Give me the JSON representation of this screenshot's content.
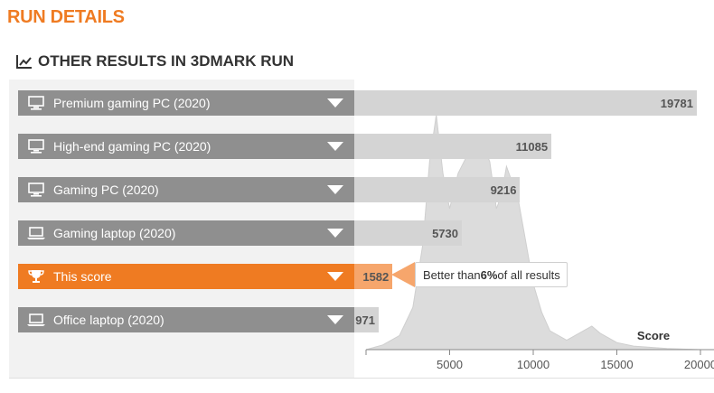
{
  "header": {
    "title": "RUN DETAILS"
  },
  "section": {
    "title": "OTHER RESULTS IN 3DMARK RUN"
  },
  "rows": [
    {
      "label": "Premium gaming PC (2020)",
      "score": "19781",
      "value": 19781,
      "icon": "desktop-icon",
      "highlight": false
    },
    {
      "label": "High-end gaming PC (2020)",
      "score": "11085",
      "value": 11085,
      "icon": "desktop-icon",
      "highlight": false
    },
    {
      "label": "Gaming PC (2020)",
      "score": "9216",
      "value": 9216,
      "icon": "desktop-icon",
      "highlight": false
    },
    {
      "label": "Gaming laptop (2020)",
      "score": "5730",
      "value": 5730,
      "icon": "laptop-icon",
      "highlight": false
    },
    {
      "label": "This score",
      "score": "1582",
      "value": 1582,
      "icon": "trophy-icon",
      "highlight": true
    },
    {
      "label": "Office laptop (2020)",
      "score": "971",
      "value": 971,
      "icon": "laptop-icon",
      "highlight": false
    }
  ],
  "tooltip": {
    "prefix": "Better than ",
    "percent": "6%",
    "suffix": " of all results"
  },
  "colors": {
    "accent": "#ef7b22",
    "accent_light": "#f6a66c",
    "row_gray": "#8f8f8f",
    "bar_gray": "#d4d4d4",
    "panel": "#f2f2f2",
    "curve": "#dcdcdc"
  },
  "chart_data": {
    "type": "area",
    "xlabel": "Score",
    "xlim": [
      0,
      20000
    ],
    "ylim": [
      0,
      100
    ],
    "ticks": [
      5000,
      10000,
      15000,
      20000
    ],
    "tick_labels": [
      "5000",
      "10000",
      "15000",
      "20000"
    ],
    "x": [
      0,
      1000,
      2000,
      2800,
      3400,
      3800,
      4200,
      4600,
      5000,
      5500,
      6000,
      6500,
      7000,
      7400,
      7800,
      8100,
      8400,
      8700,
      9000,
      9500,
      10000,
      10500,
      11000,
      12000,
      13000,
      13500,
      14000,
      15000,
      16000,
      18000,
      20000
    ],
    "y": [
      0,
      2,
      6,
      18,
      45,
      80,
      100,
      75,
      60,
      75,
      82,
      85,
      87,
      80,
      60,
      66,
      78,
      72,
      68,
      48,
      28,
      16,
      8,
      4,
      8,
      10,
      7,
      3,
      1.5,
      0.5,
      0
    ]
  }
}
